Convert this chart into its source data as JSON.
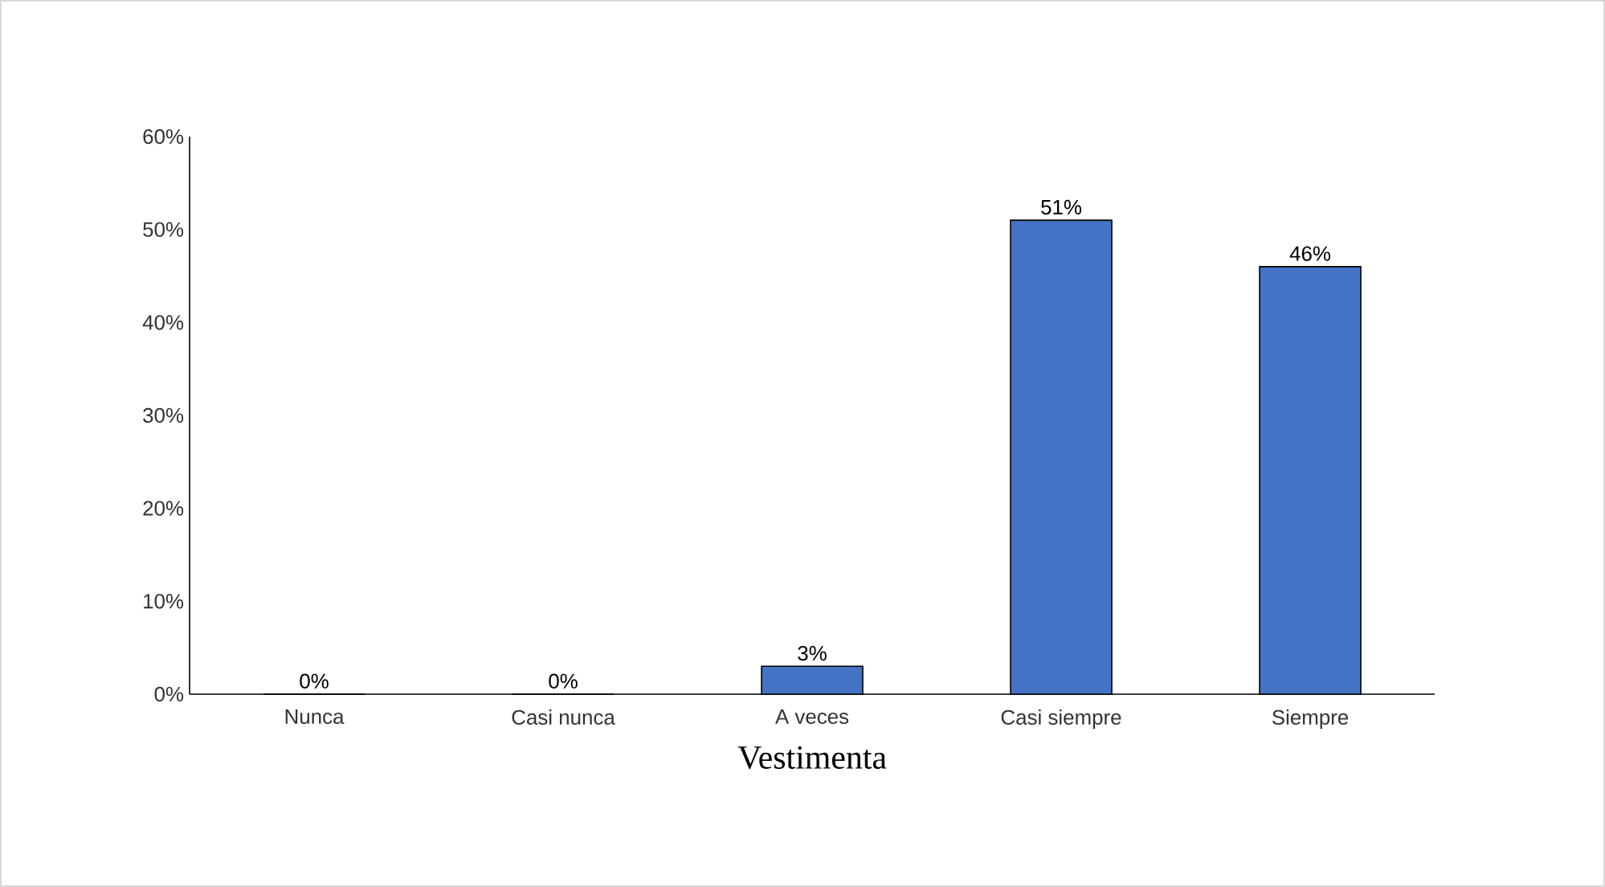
{
  "chart_data": {
    "type": "bar",
    "xlabel": "Vestimenta",
    "categories": [
      "Nunca",
      "Casi nunca",
      "A veces",
      "Casi siempre",
      "Siempre"
    ],
    "values": [
      0,
      0,
      3,
      51,
      46
    ],
    "color": "#4472c4",
    "value_labels": [
      "0%",
      "0%",
      "3%",
      "51%",
      "46%"
    ],
    "ylim": [
      0,
      60
    ],
    "yticks": [
      {
        "value": 0,
        "label": "0%"
      },
      {
        "value": 10,
        "label": "10%"
      },
      {
        "value": 20,
        "label": "20%"
      },
      {
        "value": 30,
        "label": "30%"
      },
      {
        "value": 40,
        "label": "40%"
      },
      {
        "value": 50,
        "label": "50%"
      },
      {
        "value": 60,
        "label": "60%"
      }
    ],
    "grid": false
  }
}
